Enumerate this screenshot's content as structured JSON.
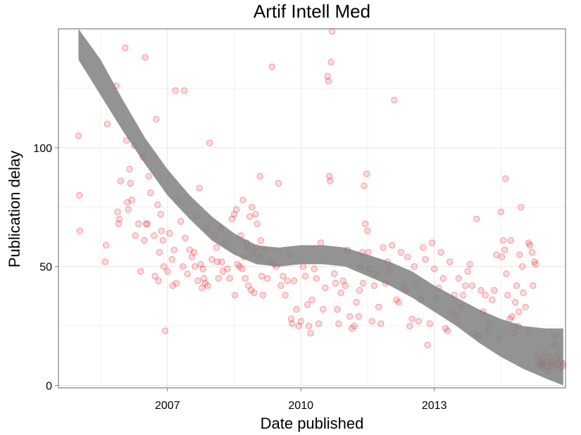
{
  "chart_data": {
    "type": "scatter",
    "title": "Artif Intell Med",
    "xlabel": "Date published",
    "ylabel": "Publication delay",
    "x_ticks": [
      "2007",
      "2010",
      "2013"
    ],
    "y_ticks": [
      "0",
      "50",
      "100"
    ],
    "xlim": [
      2004.55,
      2015.95
    ],
    "ylim": [
      -1,
      150
    ],
    "grid": true,
    "point_color": "#e8000b",
    "band_color": "#808080",
    "points": [
      [
        2005.0,
        105
      ],
      [
        2005.02,
        80
      ],
      [
        2005.03,
        65
      ],
      [
        2005.6,
        52
      ],
      [
        2005.62,
        59
      ],
      [
        2005.65,
        110
      ],
      [
        2005.85,
        126
      ],
      [
        2005.88,
        73
      ],
      [
        2005.9,
        68
      ],
      [
        2005.92,
        70
      ],
      [
        2005.95,
        86
      ],
      [
        2006.05,
        142
      ],
      [
        2006.08,
        103
      ],
      [
        2006.1,
        77
      ],
      [
        2006.12,
        74
      ],
      [
        2006.15,
        91
      ],
      [
        2006.17,
        85
      ],
      [
        2006.2,
        78
      ],
      [
        2006.25,
        101
      ],
      [
        2006.28,
        63
      ],
      [
        2006.35,
        68
      ],
      [
        2006.4,
        48
      ],
      [
        2006.45,
        96
      ],
      [
        2006.48,
        61
      ],
      [
        2006.5,
        138
      ],
      [
        2006.52,
        68
      ],
      [
        2006.55,
        68
      ],
      [
        2006.58,
        88
      ],
      [
        2006.62,
        81
      ],
      [
        2006.7,
        63
      ],
      [
        2006.72,
        46
      ],
      [
        2006.75,
        112
      ],
      [
        2006.78,
        76
      ],
      [
        2006.8,
        44
      ],
      [
        2006.82,
        56
      ],
      [
        2006.85,
        72
      ],
      [
        2006.87,
        65
      ],
      [
        2006.9,
        61
      ],
      [
        2006.92,
        50
      ],
      [
        2006.95,
        23
      ],
      [
        2007.0,
        48
      ],
      [
        2007.05,
        64
      ],
      [
        2007.1,
        53
      ],
      [
        2007.12,
        42
      ],
      [
        2007.15,
        57
      ],
      [
        2007.18,
        124
      ],
      [
        2007.2,
        43
      ],
      [
        2007.25,
        78
      ],
      [
        2007.3,
        69
      ],
      [
        2007.35,
        50
      ],
      [
        2007.38,
        124
      ],
      [
        2007.4,
        62
      ],
      [
        2007.45,
        47
      ],
      [
        2007.5,
        57
      ],
      [
        2007.55,
        54
      ],
      [
        2007.6,
        56
      ],
      [
        2007.62,
        50
      ],
      [
        2007.65,
        71
      ],
      [
        2007.68,
        44
      ],
      [
        2007.72,
        83
      ],
      [
        2007.75,
        51
      ],
      [
        2007.78,
        41
      ],
      [
        2007.8,
        49
      ],
      [
        2007.82,
        45
      ],
      [
        2007.85,
        43
      ],
      [
        2007.88,
        66
      ],
      [
        2007.9,
        42
      ],
      [
        2007.95,
        102
      ],
      [
        2008.0,
        53
      ],
      [
        2008.05,
        63
      ],
      [
        2008.1,
        58
      ],
      [
        2008.12,
        52
      ],
      [
        2008.15,
        45
      ],
      [
        2008.2,
        66
      ],
      [
        2008.22,
        52
      ],
      [
        2008.25,
        48
      ],
      [
        2008.3,
        60
      ],
      [
        2008.35,
        49
      ],
      [
        2008.4,
        45
      ],
      [
        2008.45,
        70
      ],
      [
        2008.5,
        72
      ],
      [
        2008.52,
        38
      ],
      [
        2008.55,
        74
      ],
      [
        2008.58,
        51
      ],
      [
        2008.62,
        50
      ],
      [
        2008.65,
        63
      ],
      [
        2008.68,
        49
      ],
      [
        2008.7,
        78
      ],
      [
        2008.72,
        54
      ],
      [
        2008.75,
        45
      ],
      [
        2008.78,
        60
      ],
      [
        2008.8,
        58
      ],
      [
        2008.82,
        42
      ],
      [
        2008.85,
        71
      ],
      [
        2008.88,
        40
      ],
      [
        2008.9,
        75
      ],
      [
        2008.92,
        56
      ],
      [
        2008.95,
        39
      ],
      [
        2008.98,
        72
      ],
      [
        2009.0,
        58
      ],
      [
        2009.02,
        68
      ],
      [
        2009.05,
        54
      ],
      [
        2009.08,
        88
      ],
      [
        2009.1,
        61
      ],
      [
        2009.12,
        46
      ],
      [
        2009.15,
        38
      ],
      [
        2009.2,
        57
      ],
      [
        2009.25,
        45
      ],
      [
        2009.3,
        52
      ],
      [
        2009.35,
        134
      ],
      [
        2009.4,
        51
      ],
      [
        2009.45,
        50
      ],
      [
        2009.5,
        85
      ],
      [
        2009.55,
        42
      ],
      [
        2009.6,
        46
      ],
      [
        2009.65,
        38
      ],
      [
        2009.7,
        44
      ],
      [
        2009.75,
        55
      ],
      [
        2009.78,
        28
      ],
      [
        2009.8,
        26
      ],
      [
        2009.85,
        44
      ],
      [
        2009.9,
        32
      ],
      [
        2009.95,
        25
      ],
      [
        2010.0,
        27
      ],
      [
        2010.05,
        50
      ],
      [
        2010.1,
        46
      ],
      [
        2010.15,
        34
      ],
      [
        2010.18,
        25
      ],
      [
        2010.22,
        22
      ],
      [
        2010.25,
        36
      ],
      [
        2010.3,
        49
      ],
      [
        2010.35,
        45
      ],
      [
        2010.4,
        26
      ],
      [
        2010.45,
        60
      ],
      [
        2010.5,
        32
      ],
      [
        2010.55,
        41
      ],
      [
        2010.6,
        130
      ],
      [
        2010.62,
        128
      ],
      [
        2010.64,
        88
      ],
      [
        2010.66,
        86
      ],
      [
        2010.68,
        136
      ],
      [
        2010.7,
        149
      ],
      [
        2010.75,
        47
      ],
      [
        2010.78,
        43
      ],
      [
        2010.82,
        32
      ],
      [
        2010.85,
        26
      ],
      [
        2010.9,
        39
      ],
      [
        2010.95,
        44
      ],
      [
        2011.0,
        42
      ],
      [
        2011.05,
        57
      ],
      [
        2011.1,
        29
      ],
      [
        2011.15,
        24
      ],
      [
        2011.2,
        25
      ],
      [
        2011.25,
        35
      ],
      [
        2011.3,
        29
      ],
      [
        2011.32,
        40
      ],
      [
        2011.35,
        50
      ],
      [
        2011.38,
        56
      ],
      [
        2011.4,
        43
      ],
      [
        2011.42,
        84
      ],
      [
        2011.45,
        68
      ],
      [
        2011.48,
        89
      ],
      [
        2011.5,
        65
      ],
      [
        2011.52,
        56
      ],
      [
        2011.55,
        49
      ],
      [
        2011.6,
        27
      ],
      [
        2011.65,
        42
      ],
      [
        2011.7,
        47
      ],
      [
        2011.75,
        33
      ],
      [
        2011.8,
        26
      ],
      [
        2011.85,
        58
      ],
      [
        2011.9,
        43
      ],
      [
        2011.95,
        52
      ],
      [
        2012.0,
        48
      ],
      [
        2012.05,
        59
      ],
      [
        2012.1,
        120
      ],
      [
        2012.15,
        36
      ],
      [
        2012.2,
        35
      ],
      [
        2012.25,
        56
      ],
      [
        2012.3,
        42
      ],
      [
        2012.35,
        40
      ],
      [
        2012.4,
        54
      ],
      [
        2012.45,
        25
      ],
      [
        2012.5,
        28
      ],
      [
        2012.55,
        50
      ],
      [
        2012.6,
        42
      ],
      [
        2012.65,
        27
      ],
      [
        2012.7,
        36
      ],
      [
        2012.75,
        58
      ],
      [
        2012.8,
        53
      ],
      [
        2012.85,
        17
      ],
      [
        2012.9,
        26
      ],
      [
        2012.95,
        60
      ],
      [
        2013.0,
        49
      ],
      [
        2013.05,
        37
      ],
      [
        2013.1,
        41
      ],
      [
        2013.15,
        56
      ],
      [
        2013.2,
        45
      ],
      [
        2013.25,
        24
      ],
      [
        2013.3,
        23
      ],
      [
        2013.35,
        52
      ],
      [
        2013.4,
        31
      ],
      [
        2013.45,
        38
      ],
      [
        2013.5,
        29
      ],
      [
        2013.55,
        45
      ],
      [
        2013.6,
        33
      ],
      [
        2013.65,
        38
      ],
      [
        2013.7,
        42
      ],
      [
        2013.75,
        48
      ],
      [
        2013.8,
        51
      ],
      [
        2013.85,
        42
      ],
      [
        2013.9,
        22
      ],
      [
        2013.95,
        70
      ],
      [
        2014.0,
        21
      ],
      [
        2014.05,
        40
      ],
      [
        2014.1,
        31
      ],
      [
        2014.15,
        38
      ],
      [
        2014.2,
        23
      ],
      [
        2014.25,
        26
      ],
      [
        2014.3,
        36
      ],
      [
        2014.35,
        40
      ],
      [
        2014.4,
        55
      ],
      [
        2014.45,
        20
      ],
      [
        2014.5,
        73
      ],
      [
        2014.52,
        54
      ],
      [
        2014.55,
        61
      ],
      [
        2014.58,
        57
      ],
      [
        2014.6,
        87
      ],
      [
        2014.62,
        47
      ],
      [
        2014.65,
        38
      ],
      [
        2014.7,
        28
      ],
      [
        2014.72,
        61
      ],
      [
        2014.75,
        29
      ],
      [
        2014.8,
        22
      ],
      [
        2014.82,
        35
      ],
      [
        2014.85,
        42
      ],
      [
        2014.88,
        25
      ],
      [
        2014.9,
        31
      ],
      [
        2014.92,
        55
      ],
      [
        2014.95,
        75
      ],
      [
        2014.98,
        50
      ],
      [
        2015.0,
        39
      ],
      [
        2015.05,
        33
      ],
      [
        2015.1,
        22
      ],
      [
        2015.12,
        60
      ],
      [
        2015.15,
        59
      ],
      [
        2015.2,
        56
      ],
      [
        2015.22,
        42
      ],
      [
        2015.25,
        52
      ],
      [
        2015.28,
        51
      ],
      [
        2015.3,
        13
      ],
      [
        2015.35,
        10
      ],
      [
        2015.38,
        8
      ],
      [
        2015.4,
        9
      ],
      [
        2015.42,
        11
      ],
      [
        2015.45,
        9
      ],
      [
        2015.48,
        7
      ],
      [
        2015.5,
        14
      ],
      [
        2015.52,
        10
      ],
      [
        2015.55,
        8
      ],
      [
        2015.58,
        6
      ],
      [
        2015.6,
        12
      ],
      [
        2015.62,
        9
      ],
      [
        2015.65,
        10
      ],
      [
        2015.68,
        8
      ],
      [
        2015.7,
        17
      ],
      [
        2015.72,
        21
      ],
      [
        2015.75,
        11
      ],
      [
        2015.78,
        9
      ],
      [
        2015.8,
        13
      ],
      [
        2015.82,
        7
      ],
      [
        2015.85,
        10
      ],
      [
        2015.88,
        8
      ],
      [
        2015.9,
        9
      ]
    ],
    "band": {
      "x": [
        2005.0,
        2005.5,
        2006.0,
        2006.5,
        2007.0,
        2007.5,
        2008.0,
        2008.5,
        2009.0,
        2009.5,
        2010.0,
        2010.5,
        2011.0,
        2011.5,
        2012.0,
        2012.5,
        2013.0,
        2013.5,
        2014.0,
        2014.5,
        2015.0,
        2015.5,
        2015.9
      ],
      "upper": [
        155,
        137,
        120,
        104,
        91,
        80,
        71,
        64,
        59,
        58,
        59,
        59,
        58,
        55,
        52,
        48,
        42,
        37,
        32,
        28,
        25,
        24,
        24
      ],
      "lower": [
        137,
        122,
        107,
        93,
        80,
        70,
        61,
        55,
        51,
        50,
        51,
        51,
        50,
        46,
        42,
        37,
        31,
        25,
        18,
        12,
        7,
        3,
        0
      ]
    }
  }
}
